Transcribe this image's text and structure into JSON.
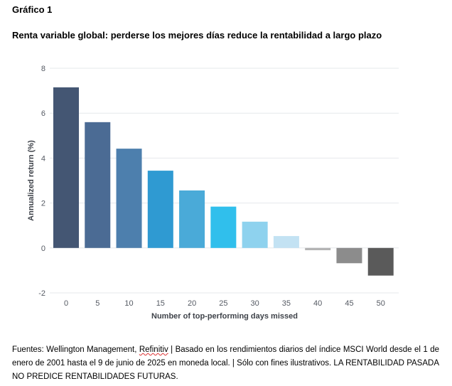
{
  "header": {
    "figure_label": "Gráfico 1",
    "title": "Renta variable global: perderse los mejores días reduce la rentabilidad a largo plazo"
  },
  "chart_data": {
    "type": "bar",
    "title": "Renta variable global: perderse los mejores días reduce la rentabilidad a largo plazo",
    "xlabel": "Number of top-performing days missed",
    "ylabel": "Annualized return (%)",
    "categories": [
      "0",
      "5",
      "10",
      "15",
      "20",
      "25",
      "30",
      "35",
      "40",
      "45",
      "50"
    ],
    "values": [
      7.15,
      5.6,
      4.42,
      3.44,
      2.56,
      1.84,
      1.17,
      0.53,
      -0.1,
      -0.68,
      -1.23
    ],
    "colors": [
      "#445673",
      "#4b6b94",
      "#4d7fad",
      "#2f9ad2",
      "#4aaad8",
      "#30bfec",
      "#8ed2ee",
      "#c3e2f3",
      "#b3b3b3",
      "#8c8c8c",
      "#5a5a5a"
    ],
    "ylim": [
      -2,
      8
    ],
    "yticks": [
      "-2",
      "0",
      "2",
      "4",
      "6",
      "8"
    ],
    "grid": true,
    "legend": "none"
  },
  "footer": {
    "source_pre": "Fuentes: Wellington Management, ",
    "source_flagged": "Refinitiv",
    "source_post": " | Basado en los rendimientos diarios del índice MSCI World desde el 1 de enero de 2001 hasta el 9 de junio de 2025 en moneda local. | Sólo con fines ilustrativos. LA RENTABILIDAD PASADA NO PREDICE RENTABILIDADES FUTURAS."
  }
}
